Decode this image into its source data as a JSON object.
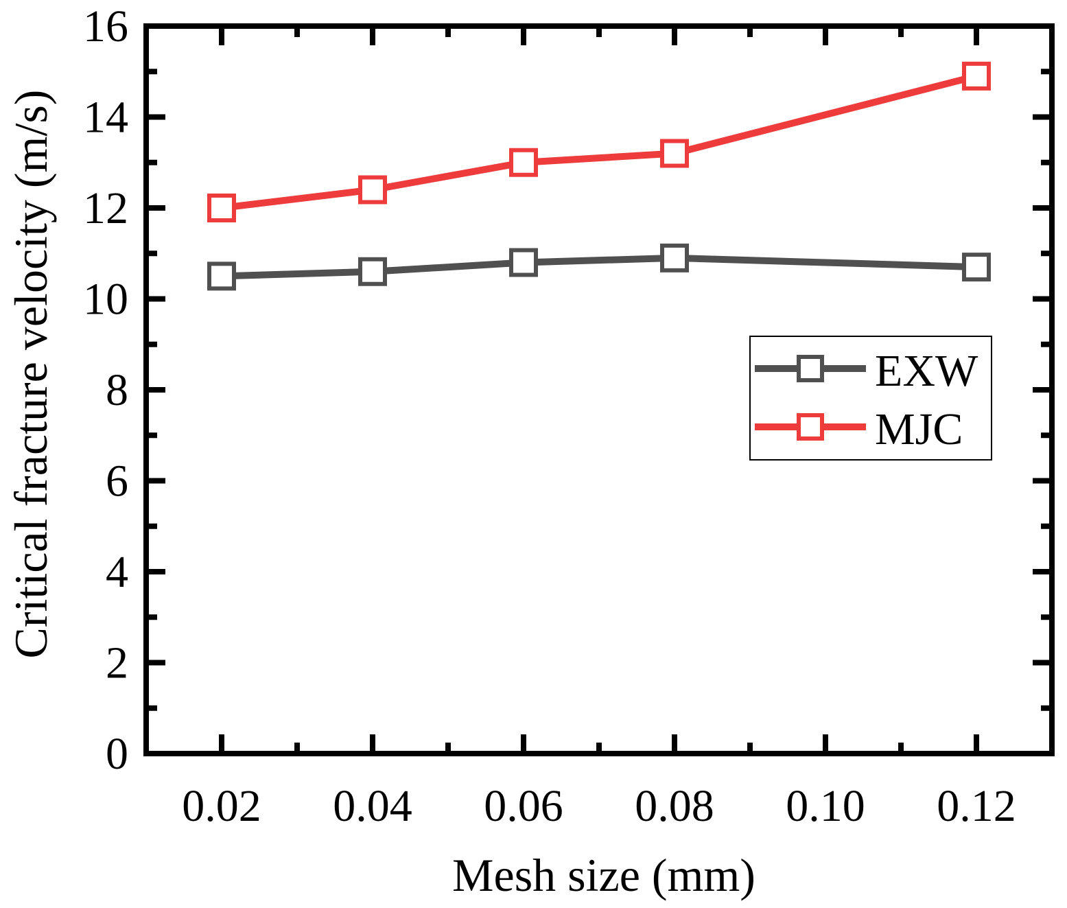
{
  "chart_data": {
    "type": "line",
    "xlabel": "Mesh size (mm)",
    "ylabel": "Critical fracture velocity (m/s)",
    "xlim": [
      0.01,
      0.13
    ],
    "ylim": [
      0,
      16
    ],
    "xticks": [
      "0.02",
      "0.04",
      "0.06",
      "0.08",
      "0.10",
      "0.12"
    ],
    "yticks": [
      "0",
      "2",
      "4",
      "6",
      "8",
      "10",
      "12",
      "14",
      "16"
    ],
    "legend_position": "right-middle",
    "series": [
      {
        "name": "EXW",
        "color": "#505050",
        "marker": "open-square",
        "x": [
          0.02,
          0.04,
          0.06,
          0.08,
          0.12
        ],
        "y": [
          10.5,
          10.6,
          10.8,
          10.9,
          10.7
        ]
      },
      {
        "name": "MJC",
        "color": "#ee3b3b",
        "marker": "open-square",
        "x": [
          0.02,
          0.04,
          0.06,
          0.08,
          0.12
        ],
        "y": [
          12.0,
          12.4,
          13.0,
          13.2,
          14.9
        ]
      }
    ]
  }
}
